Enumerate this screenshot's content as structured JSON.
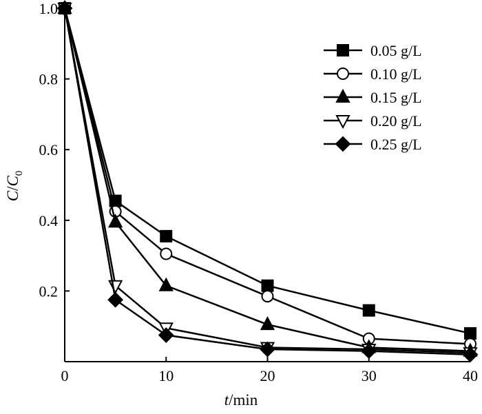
{
  "chart_data": {
    "type": "line",
    "title": "",
    "xlabel": {
      "italic": "t",
      "rest": "/min"
    },
    "ylabel": {
      "c": "C",
      "slash": "/",
      "c0": "C",
      "sub": "0"
    },
    "xlim": [
      0,
      40
    ],
    "ylim": [
      0,
      1.0
    ],
    "xticks": [
      0,
      10,
      20,
      30,
      40
    ],
    "xtick_labels": [
      "0",
      "10",
      "20",
      "30",
      "40"
    ],
    "yticks": [
      0.2,
      0.4,
      0.6,
      0.8,
      1.0
    ],
    "ytick_labels": [
      "0.2",
      "0.4",
      "0.6",
      "0.8",
      "1.0"
    ],
    "grid": false,
    "legend_position": "top-right",
    "series": [
      {
        "name": "0.05 g/L",
        "marker": "square-filled",
        "x": [
          0,
          5,
          10,
          20,
          30,
          40
        ],
        "y": [
          1.0,
          0.455,
          0.355,
          0.215,
          0.145,
          0.08
        ]
      },
      {
        "name": "0.10 g/L",
        "marker": "circle-open",
        "x": [
          0,
          5,
          10,
          20,
          30,
          40
        ],
        "y": [
          1.0,
          0.425,
          0.305,
          0.185,
          0.065,
          0.05
        ]
      },
      {
        "name": "0.15 g/L",
        "marker": "triangle-up-filled",
        "x": [
          0,
          5,
          10,
          20,
          30,
          40
        ],
        "y": [
          1.0,
          0.395,
          0.215,
          0.105,
          0.04,
          0.03
        ]
      },
      {
        "name": "0.20 g/L",
        "marker": "triangle-down-open",
        "x": [
          0,
          5,
          10,
          20,
          30,
          40
        ],
        "y": [
          1.0,
          0.215,
          0.095,
          0.04,
          0.035,
          0.025
        ]
      },
      {
        "name": "0.25 g/L",
        "marker": "diamond-filled",
        "x": [
          0,
          5,
          10,
          20,
          30,
          40
        ],
        "y": [
          1.0,
          0.175,
          0.075,
          0.035,
          0.03,
          0.02
        ]
      }
    ]
  }
}
